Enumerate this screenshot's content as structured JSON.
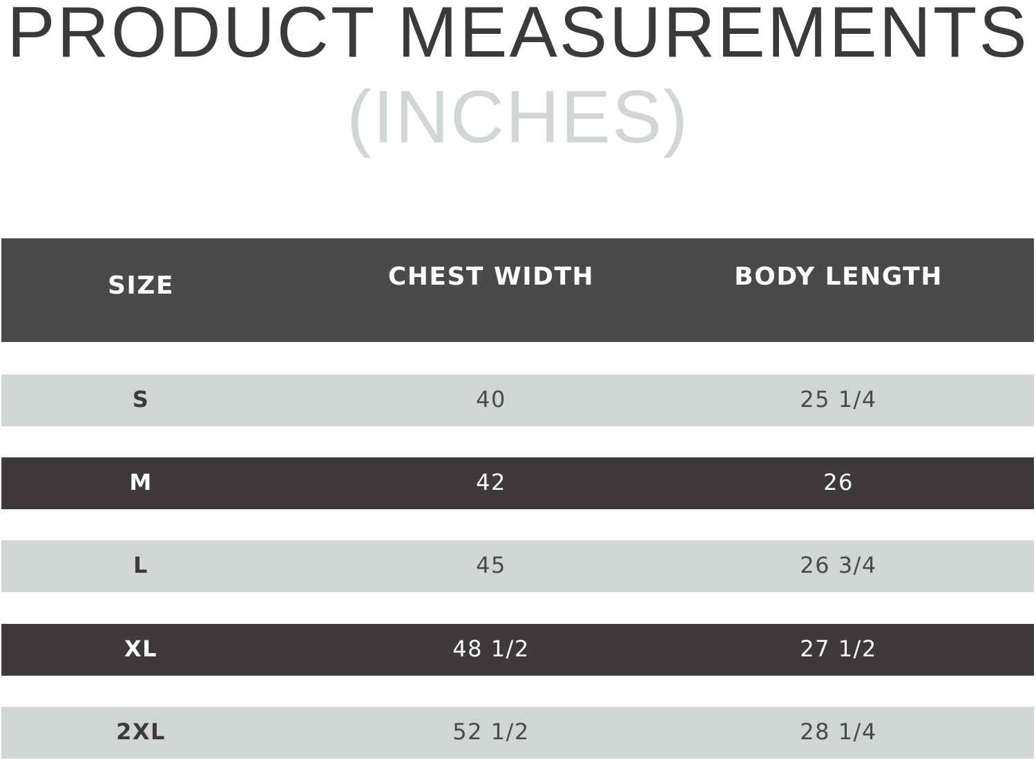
{
  "title": "PRODUCT MEASUREMENTS",
  "subtitle": "(INCHES)",
  "table": {
    "headers": [
      "SIZE",
      "CHEST WIDTH",
      "BODY LENGTH"
    ],
    "rows": [
      {
        "size": "S",
        "chest": "40",
        "length": "25 1/4"
      },
      {
        "size": "M",
        "chest": "42",
        "length": "26"
      },
      {
        "size": "L",
        "chest": "45",
        "length": "26 3/4"
      },
      {
        "size": "XL",
        "chest": "48 1/2",
        "length": "27 1/2"
      },
      {
        "size": "2XL",
        "chest": "52 1/2",
        "length": "28 1/4"
      }
    ]
  },
  "colors": {
    "header": "#4a4a4a",
    "row_light": "#d1d5d6",
    "row_dark": "#3e3a39",
    "subtitle": "#d3d6d6"
  }
}
